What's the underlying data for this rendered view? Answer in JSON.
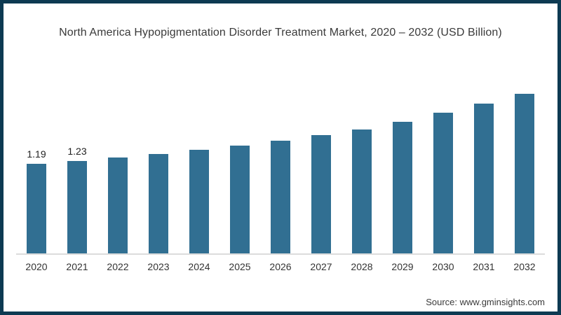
{
  "frame": {
    "border_color": "#0d3a52",
    "background_color": "#ffffff"
  },
  "title": "North America Hypopigmentation Disorder Treatment Market, 2020 – 2032 (USD Billion)",
  "source": "Source: www.gminsights.com",
  "chart_data": {
    "type": "bar",
    "title": "North America Hypopigmentation Disorder Treatment Market, 2020 – 2032 (USD Billion)",
    "unit": "USD Billion",
    "categories": [
      "2020",
      "2021",
      "2022",
      "2023",
      "2024",
      "2025",
      "2026",
      "2027",
      "2028",
      "2029",
      "2030",
      "2031",
      "2032"
    ],
    "values": [
      1.19,
      1.23,
      1.27,
      1.32,
      1.38,
      1.43,
      1.5,
      1.57,
      1.65,
      1.75,
      1.87,
      1.99,
      2.12
    ],
    "value_labels": [
      "1.19",
      "1.23",
      "",
      "",
      "",
      "",
      "",
      "",
      "",
      "",
      "",
      "",
      ""
    ],
    "xlabel": "",
    "ylabel": "",
    "ylim": [
      0,
      2.25
    ],
    "grid": false,
    "legend": false,
    "bar_color": "#316f92",
    "axis_line_color": "#dcdcdc"
  }
}
